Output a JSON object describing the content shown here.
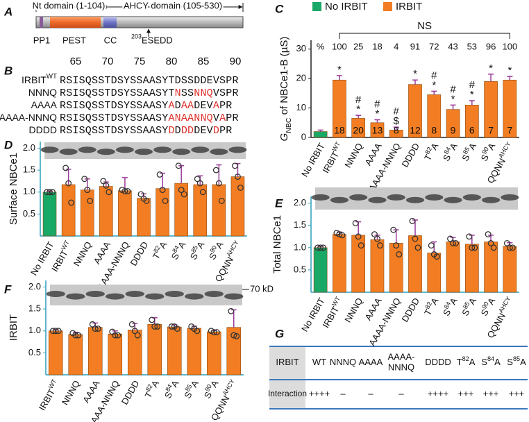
{
  "panel_a": {
    "letter": "A",
    "nt_domain": "Nt domain (1-104)",
    "ahcy_domain": "AHCY domain (105-530)",
    "pp1": "PP1",
    "pest": "PEST",
    "cc": "CC",
    "site_number": "203",
    "site": "ESEDD"
  },
  "panel_b": {
    "letter": "B",
    "ruler": [
      65,
      70,
      75,
      80,
      85,
      90
    ],
    "rows": [
      {
        "name": [
          "IRBIT",
          "WT"
        ],
        "sequence": [
          "RSISQSSTDSYSSAASYTDSSDDEVSPR"
        ]
      },
      {
        "name": [
          "NNNQ"
        ],
        "sequence": [
          "RSISQSSTDSYSSAASYT",
          "N",
          "SS",
          "NNQ",
          "VSPR"
        ]
      },
      {
        "name": [
          "AAAA"
        ],
        "sequence": [
          "RSISQSSTDSYSSAASY",
          "A",
          "D",
          "AA",
          "DEV",
          "A",
          "PR"
        ]
      },
      {
        "name": [
          "AAAA-NNNQ"
        ],
        "sequence": [
          "RSISQSSTDSYSSAASY",
          "ANAANNQ",
          "V",
          "A",
          "PR"
        ]
      },
      {
        "name": [
          "DDDD"
        ],
        "sequence": [
          "RSISQSSTDSYSSAASY",
          "D",
          "D",
          "DD",
          "DEV",
          "D",
          "PR"
        ]
      }
    ]
  },
  "chart_data": [
    {
      "type": "bar",
      "panel": "C",
      "y_label": [
        "G",
        "NBC",
        " of NBCe1-B (µS)"
      ],
      "categories": [
        [
          "No IRBIT"
        ],
        [
          "IRBIT",
          "WT"
        ],
        [
          "NNNQ"
        ],
        [
          "AAAA"
        ],
        [
          "AAAA-NNNQ"
        ],
        [
          "DDDD"
        ],
        [
          "T",
          "82",
          "A"
        ],
        [
          "S",
          "84",
          "A"
        ],
        [
          "S",
          "85",
          "A"
        ],
        [
          "S",
          "90",
          "A"
        ],
        [
          "QQNN",
          "AHCY"
        ]
      ],
      "values": [
        2,
        19.5,
        6.5,
        5,
        2.5,
        18,
        14.5,
        9.5,
        11,
        19,
        19.5
      ],
      "errors": [
        0.5,
        1.5,
        1,
        1,
        1,
        1.5,
        1.2,
        1.5,
        1.5,
        2.5,
        1.2
      ],
      "colors": [
        "#1aa866",
        "#f27d22",
        "#f27d22",
        "#f27d22",
        "#f27d22",
        "#f27d22",
        "#f27d22",
        "#f27d22",
        "#f27d22",
        "#f27d22",
        "#f27d22"
      ],
      "legend": [
        {
          "name": "No IRBIT",
          "color": "#1aa866"
        },
        {
          "name": "IRBIT",
          "color": "#f27d22"
        }
      ],
      "ylim": [
        0,
        33
      ],
      "yticks": [
        0,
        10,
        20,
        30
      ],
      "axis_color": "#222222",
      "counts": [
        null,
        18,
        20,
        13,
        8,
        12,
        8,
        9,
        6,
        7,
        7
      ],
      "percent_title": "%",
      "percents": [
        null,
        100,
        25,
        18,
        4,
        91,
        72,
        43,
        53,
        96,
        100
      ],
      "symbols": [
        [],
        [
          "*"
        ],
        [
          "*",
          "#"
        ],
        [
          "*",
          "#"
        ],
        [
          "$",
          "#"
        ],
        [
          "*"
        ],
        [
          "*",
          "#"
        ],
        [
          "*",
          "#"
        ],
        [
          "*",
          "#"
        ],
        [
          "*"
        ],
        [
          "*"
        ]
      ],
      "bracket_label": "NS"
    },
    {
      "type": "bar",
      "panel": "D",
      "y_label": [
        "Surface NBCe1"
      ],
      "categories": [
        [
          "No IRBIT"
        ],
        [
          "IRBIT",
          "WT"
        ],
        [
          "NNNQ"
        ],
        [
          "AAAA"
        ],
        [
          "AAAA-NNNQ"
        ],
        [
          "DDDD"
        ],
        [
          "T",
          "82",
          "A"
        ],
        [
          "S",
          "84",
          "A"
        ],
        [
          "S",
          "85",
          "A"
        ],
        [
          "S",
          "90",
          "A"
        ],
        [
          "QQNN",
          "AHCY"
        ]
      ],
      "values": [
        1.0,
        1.17,
        1.05,
        1.13,
        1.03,
        0.86,
        1.08,
        1.2,
        1.17,
        1.17,
        1.35
      ],
      "errors": [
        0.02,
        0.35,
        0.25,
        0.1,
        0.3,
        0.1,
        0.35,
        0.4,
        0.2,
        0.45,
        0.3
      ],
      "points": [
        [
          1,
          1,
          1
        ],
        [
          1.55,
          1.2,
          0.76
        ],
        [
          1.3,
          1.05,
          0.8
        ],
        [
          1.25,
          1.15,
          1.0
        ],
        [
          1.05,
          1.02,
          1.02
        ],
        [
          0.95,
          0.85,
          0.8
        ],
        [
          1.4,
          1.05,
          0.8
        ],
        [
          1.6,
          1.05,
          0.95
        ],
        [
          1.3,
          1.2,
          1.0
        ],
        [
          1.5,
          1.2,
          0.8
        ],
        [
          1.6,
          1.35,
          1.1
        ]
      ],
      "colors": [
        "#1aa866",
        "#f27d22",
        "#f27d22",
        "#f27d22",
        "#f27d22",
        "#f27d22",
        "#f27d22",
        "#f27d22",
        "#f27d22",
        "#f27d22",
        "#f27d22"
      ],
      "ylim": [
        0,
        2.15
      ],
      "yticks": [
        {
          "value": 0.5,
          "label": "0.5"
        },
        {
          "value": 1,
          "label": "1.0"
        },
        {
          "value": 1.5,
          "label": "1.5"
        },
        {
          "value": 2,
          "label": "2.0"
        }
      ],
      "axis_color": "#2a9fbc"
    },
    {
      "type": "bar",
      "panel": "E",
      "y_label": [
        "Total NBCe1"
      ],
      "categories": [
        [
          "No IRBIT"
        ],
        [
          "IRBIT",
          "WT"
        ],
        [
          "NNNQ"
        ],
        [
          "AAAA"
        ],
        [
          "AAAA-NNNQ"
        ],
        [
          "DDDD"
        ],
        [
          "T",
          "82",
          "A"
        ],
        [
          "S",
          "84",
          "A"
        ],
        [
          "S",
          "85",
          "A"
        ],
        [
          "S",
          "90",
          "A"
        ],
        [
          "QQNN",
          "AHCY"
        ]
      ],
      "values": [
        1.0,
        1.3,
        1.28,
        1.18,
        1.1,
        1.27,
        0.88,
        1.13,
        1.08,
        1.13,
        1.03
      ],
      "errors": [
        0.03,
        0.05,
        0.3,
        0.1,
        0.3,
        0.35,
        0.25,
        0.1,
        0.2,
        0.15,
        0.08
      ],
      "points": [
        [
          1,
          1,
          1
        ],
        [
          1.33,
          1.3,
          1.28
        ],
        [
          1.55,
          1.25,
          1.05
        ],
        [
          1.3,
          1.2,
          1.05
        ],
        [
          1.4,
          1.05,
          0.85
        ],
        [
          1.6,
          1.2,
          1.0
        ],
        [
          1.05,
          0.85,
          0.8
        ],
        [
          1.2,
          1.1,
          1.1
        ],
        [
          1.25,
          1.0,
          1.0
        ],
        [
          1.3,
          1.1,
          1.0
        ],
        [
          1.1,
          1.0,
          1.0
        ]
      ],
      "colors": [
        "#1aa866",
        "#f27d22",
        "#f27d22",
        "#f27d22",
        "#f27d22",
        "#f27d22",
        "#f27d22",
        "#f27d22",
        "#f27d22",
        "#f27d22",
        "#f27d22"
      ],
      "ylim": [
        0,
        2.15
      ],
      "yticks": [
        {
          "value": 0.5,
          "label": "0.5"
        },
        {
          "value": 1,
          "label": "1.0"
        },
        {
          "value": 1.5,
          "label": "1.5"
        },
        {
          "value": 2,
          "label": "2.0"
        }
      ],
      "axis_color": "#2a9fbc"
    },
    {
      "type": "bar",
      "panel": "F",
      "y_label": [
        "IRBIT"
      ],
      "marker_label": "70 kD",
      "categories": [
        [
          "IRBIT",
          "WT"
        ],
        [
          "NNNQ"
        ],
        [
          "AAAA"
        ],
        [
          "AAAA-NNNQ"
        ],
        [
          "DDDD"
        ],
        [
          "T",
          "82",
          "A"
        ],
        [
          "S",
          "84",
          "A"
        ],
        [
          "S",
          "85",
          "A"
        ],
        [
          "S",
          "90",
          "A"
        ],
        [
          "QQNN",
          "AHCY"
        ]
      ],
      "values": [
        1.0,
        0.92,
        1.08,
        0.93,
        1.02,
        1.15,
        1.09,
        1.06,
        0.98,
        1.08
      ],
      "errors": [
        0.03,
        0.05,
        0.1,
        0.07,
        0.15,
        0.15,
        0.05,
        0.05,
        0.03,
        0.4
      ],
      "points": [
        [
          1,
          1,
          1
        ],
        [
          0.95,
          0.9,
          0.9
        ],
        [
          1.15,
          1.05,
          1.05
        ],
        [
          0.98,
          0.9,
          0.9
        ],
        [
          1.15,
          1.0,
          0.9
        ],
        [
          1.25,
          1.1,
          1.1
        ],
        [
          1.1,
          1.1,
          1.05
        ],
        [
          1.1,
          1.05,
          1.0
        ],
        [
          1.0,
          0.97,
          0.97
        ],
        [
          1.45,
          0.9,
          0.88
        ]
      ],
      "colors": [
        "#f27d22",
        "#f27d22",
        "#f27d22",
        "#f27d22",
        "#f27d22",
        "#f27d22",
        "#f27d22",
        "#f27d22",
        "#f27d22",
        "#f27d22"
      ],
      "ylim": [
        0,
        2.15
      ],
      "yticks": [
        {
          "value": 0.5,
          "label": "0.5"
        },
        {
          "value": 1,
          "label": "1.0"
        },
        {
          "value": 1.5,
          "label": "1.5"
        },
        {
          "value": 2,
          "label": "2.0"
        }
      ],
      "axis_color": "#2a9fbc"
    }
  ],
  "table": {
    "letter": "G",
    "header": [
      [
        [
          "IRBIT"
        ]
      ],
      [
        [
          "WT"
        ]
      ],
      [
        [
          "NNNQ"
        ]
      ],
      [
        [
          "AAAA"
        ]
      ],
      [
        [
          "AAAA-"
        ],
        [
          "NNNQ"
        ]
      ],
      [
        [
          "DDDD"
        ]
      ],
      [
        [
          "T",
          "82",
          "A"
        ]
      ],
      [
        [
          "S",
          "84",
          "A"
        ]
      ],
      [
        [
          "S",
          "85",
          "A"
        ]
      ]
    ],
    "rows": [
      [
        "Interaction",
        "++++",
        "–",
        "–",
        "–",
        "++++",
        "+++",
        "+++",
        "+++"
      ]
    ]
  }
}
